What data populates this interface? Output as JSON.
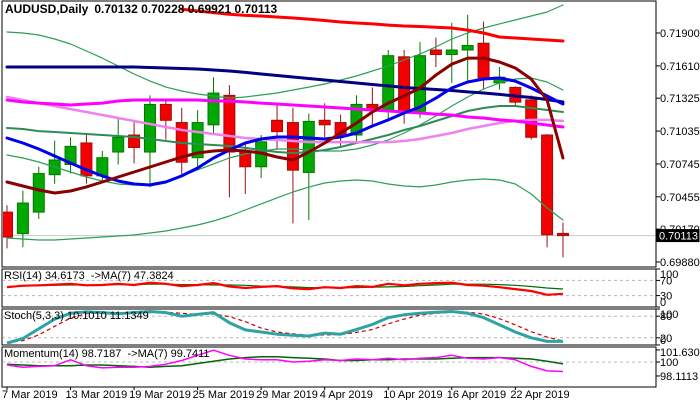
{
  "title": {
    "symbol_period": "AUDUSD,Daily",
    "ohlc": "0.70132 0.70228 0.69921 0.70113"
  },
  "colors": {
    "background": "#ffffff",
    "panel_border": "#000000",
    "bull_body": "#00a800",
    "bull_edge": "#007a00",
    "bear_body": "#f40000",
    "bear_edge": "#9b1010",
    "level_dash": "#b8b8b8",
    "current_price_line": "#c8c8c8",
    "price_tag_bg": "#000000",
    "price_tag_text": "#ffffff",
    "rsi_main": "#ff0000",
    "rsi_signal": "#007000",
    "stoch_k": "#2fa3a3",
    "stoch_d": "#cc0000",
    "mom_main": "#ff00ff",
    "mom_signal": "#006600"
  },
  "price_axis": {
    "ticks": [
      {
        "label": "0.71900",
        "value": 0.719
      },
      {
        "label": "0.71610",
        "value": 0.7161
      },
      {
        "label": "0.71325",
        "value": 0.71325
      },
      {
        "label": "0.71035",
        "value": 0.71035
      },
      {
        "label": "0.70745",
        "value": 0.70745
      },
      {
        "label": "0.70455",
        "value": 0.70455
      },
      {
        "label": "0.70170",
        "value": 0.7017
      },
      {
        "label": "0.69880",
        "value": 0.6988
      }
    ],
    "current": {
      "label": "0.70113",
      "value": 0.70113
    }
  },
  "time_axis": {
    "ticks": [
      {
        "label": "7 Mar 2019",
        "bar": 0
      },
      {
        "label": "13 Mar 2019",
        "bar": 4
      },
      {
        "label": "19 Mar 2019",
        "bar": 8
      },
      {
        "label": "25 Mar 2019",
        "bar": 12
      },
      {
        "label": "29 Mar 2019",
        "bar": 16
      },
      {
        "label": "4 Apr 2019",
        "bar": 20
      },
      {
        "label": "10 Apr 2019",
        "bar": 24
      },
      {
        "label": "16 Apr 2019",
        "bar": 28
      },
      {
        "label": "22 Apr 2019",
        "bar": 32
      }
    ]
  },
  "panels": {
    "rsi": {
      "label": "RSI(14) 34.6173  ->MA(7) 47.3824",
      "axis_ticks": [
        {
          "label": "100",
          "value": 100
        },
        {
          "label": "70",
          "value": 70
        },
        {
          "label": "30",
          "value": 30
        },
        {
          "label": "0",
          "value": 0
        }
      ],
      "levels": [
        70,
        30
      ],
      "range": [
        0,
        100
      ]
    },
    "stoch": {
      "label": "Stoch(5,3,3) 10.1010 11.1349",
      "axis_ticks": [
        {
          "label": "100",
          "value": 100
        },
        {
          "label": "80",
          "value": 80
        },
        {
          "label": "20",
          "value": 20
        },
        {
          "label": "0",
          "value": 0
        }
      ],
      "levels": [
        80,
        20
      ],
      "range": [
        0,
        100
      ]
    },
    "momentum": {
      "label": "Momentum(14) 98.7187  ->MA(7) 99.7411",
      "axis_ticks": [
        {
          "label": "101.6305",
          "value": 101.6305
        },
        {
          "label": "100",
          "value": 100
        },
        {
          "label": "98.1113",
          "value": 98.1113
        }
      ],
      "levels": [
        100
      ],
      "range": [
        98.1113,
        101.6305
      ]
    }
  },
  "chart_data": {
    "type": "candlestick",
    "title": "AUDUSD,Daily",
    "symbol": "AUDUSD",
    "timeframe": "Daily",
    "current_bar_ohlc": {
      "open": 0.70132,
      "high": 0.70228,
      "low": 0.69921,
      "close": 0.70113
    },
    "ylim": [
      0.6988,
      0.719
    ],
    "dates": [
      "7 Mar",
      "8 Mar",
      "11 Mar",
      "12 Mar",
      "13 Mar",
      "14 Mar",
      "15 Mar",
      "18 Mar",
      "19 Mar",
      "20 Mar",
      "21 Mar",
      "22 Mar",
      "25 Mar",
      "26 Mar",
      "27 Mar",
      "28 Mar",
      "29 Mar",
      "1 Apr",
      "2 Apr",
      "3 Apr",
      "4 Apr",
      "5 Apr",
      "8 Apr",
      "9 Apr",
      "10 Apr",
      "11 Apr",
      "12 Apr",
      "15 Apr",
      "16 Apr",
      "17 Apr",
      "18 Apr",
      "19 Apr",
      "22 Apr",
      "23 Apr",
      "24 Apr",
      "25 Apr"
    ],
    "open": [
      0.7032,
      0.7013,
      0.7032,
      0.7065,
      0.7074,
      0.7093,
      0.7064,
      0.7085,
      0.71,
      0.7085,
      0.7127,
      0.7111,
      0.708,
      0.7109,
      0.7135,
      0.7085,
      0.7072,
      0.7113,
      0.7111,
      0.7067,
      0.7113,
      0.7111,
      0.71,
      0.7127,
      0.7122,
      0.7169,
      0.7121,
      0.7175,
      0.7171,
      0.7175,
      0.7181,
      0.7146,
      0.7142,
      0.7131,
      0.71,
      0.70132
    ],
    "high": [
      0.7038,
      0.7051,
      0.7072,
      0.7095,
      0.7098,
      0.71,
      0.7086,
      0.7115,
      0.7113,
      0.7135,
      0.7131,
      0.7124,
      0.7122,
      0.7151,
      0.7144,
      0.7093,
      0.71,
      0.7127,
      0.7124,
      0.7119,
      0.7128,
      0.7118,
      0.7135,
      0.7142,
      0.7175,
      0.7175,
      0.7182,
      0.7186,
      0.7199,
      0.7206,
      0.72,
      0.716,
      0.7143,
      0.7135,
      0.7101,
      0.70228
    ],
    "low": [
      0.7,
      0.7001,
      0.7026,
      0.7057,
      0.7066,
      0.7057,
      0.7058,
      0.7074,
      0.7075,
      0.7054,
      0.7096,
      0.7065,
      0.7069,
      0.71,
      0.7045,
      0.7048,
      0.7062,
      0.7087,
      0.7022,
      0.7025,
      0.7098,
      0.7089,
      0.7094,
      0.7107,
      0.7112,
      0.711,
      0.7115,
      0.716,
      0.7146,
      0.7147,
      0.714,
      0.714,
      0.7126,
      0.7096,
      0.7001,
      0.69921
    ],
    "close": [
      0.701,
      0.704,
      0.7066,
      0.7078,
      0.709,
      0.7064,
      0.708,
      0.7098,
      0.7089,
      0.7127,
      0.7113,
      0.7076,
      0.7111,
      0.7137,
      0.7085,
      0.7072,
      0.7094,
      0.7103,
      0.7069,
      0.7112,
      0.7109,
      0.71,
      0.7127,
      0.7122,
      0.717,
      0.712,
      0.717,
      0.7171,
      0.7175,
      0.7179,
      0.7149,
      0.7151,
      0.7129,
      0.7098,
      0.7012,
      0.70113
    ],
    "overlays": [
      {
        "name": "bollinger-upper",
        "color": "#2e9e57",
        "width": 1.2,
        "values": [
          0.71909,
          0.719,
          0.71882,
          0.71847,
          0.71803,
          0.71741,
          0.71679,
          0.71609,
          0.71538,
          0.71476,
          0.71423,
          0.71388,
          0.71362,
          0.71344,
          0.71326,
          0.71335,
          0.71353,
          0.71371,
          0.71397,
          0.71423,
          0.7145,
          0.71485,
          0.71521,
          0.71565,
          0.71609,
          0.71662,
          0.71715,
          0.71777,
          0.71847,
          0.719,
          0.71944,
          0.7198,
          0.72015,
          0.7205,
          0.72085,
          0.72147
        ]
      },
      {
        "name": "bollinger-lower",
        "color": "#2e9e57",
        "width": 1.2,
        "values": [
          0.70092,
          0.70083,
          0.70074,
          0.70074,
          0.70083,
          0.70092,
          0.701,
          0.70109,
          0.70118,
          0.70136,
          0.70153,
          0.7018,
          0.70206,
          0.70242,
          0.70286,
          0.70339,
          0.70392,
          0.70445,
          0.70497,
          0.70541,
          0.70577,
          0.70594,
          0.70603,
          0.70594,
          0.70568,
          0.7055,
          0.70542,
          0.70559,
          0.70586,
          0.70603,
          0.70612,
          0.70603,
          0.70568,
          0.7048,
          0.70356,
          0.7025
        ]
      },
      {
        "name": "bollinger-middle",
        "color": "#2e9e57",
        "width": 1.2,
        "values": [
          0.70824,
          0.70797,
          0.70762,
          0.70718,
          0.70674,
          0.7063,
          0.70594,
          0.70568,
          0.70559,
          0.70568,
          0.70594,
          0.70639,
          0.70692,
          0.70745,
          0.70797,
          0.70833,
          0.70859,
          0.70877,
          0.70877,
          0.70868,
          0.70859,
          0.70859,
          0.70877,
          0.70912,
          0.70956,
          0.71018,
          0.71088,
          0.71168,
          0.71256,
          0.71335,
          0.71406,
          0.71459,
          0.71494,
          0.71503,
          0.71468,
          0.71397
        ]
      },
      {
        "name": "ma-green",
        "color": "#2e8b57",
        "width": 2,
        "values": [
          0.71062,
          0.71053,
          0.71035,
          0.71027,
          0.71018,
          0.71009,
          0.71,
          0.70991,
          0.70983,
          0.70965,
          0.70947,
          0.7093,
          0.70921,
          0.70912,
          0.70903,
          0.70886,
          0.70868,
          0.7085,
          0.70841,
          0.7085,
          0.70868,
          0.70894,
          0.7093,
          0.70965,
          0.71,
          0.71044,
          0.7108,
          0.71124,
          0.71168,
          0.71212,
          0.71238,
          0.71256,
          0.71256,
          0.71238,
          0.71221,
          0.71203
        ]
      },
      {
        "name": "ma-violet",
        "color": "#ee82ee",
        "width": 2.5,
        "values": [
          0.71335,
          0.71309,
          0.71282,
          0.71256,
          0.71229,
          0.71203,
          0.71177,
          0.7115,
          0.71124,
          0.71097,
          0.71071,
          0.71044,
          0.71027,
          0.71009,
          0.70991,
          0.70974,
          0.70965,
          0.70956,
          0.70947,
          0.70938,
          0.70938,
          0.70938,
          0.70938,
          0.70938,
          0.70938,
          0.70947,
          0.70965,
          0.70991,
          0.71018,
          0.71053,
          0.7108,
          0.71106,
          0.71124,
          0.71133,
          0.71133,
          0.71124
        ]
      },
      {
        "name": "ma-magenta",
        "color": "#ff00ff",
        "width": 3,
        "values": [
          0.71309,
          0.71291,
          0.71282,
          0.71274,
          0.71265,
          0.71274,
          0.71282,
          0.713,
          0.71309,
          0.71309,
          0.71309,
          0.71309,
          0.71309,
          0.713,
          0.713,
          0.71291,
          0.71282,
          0.71274,
          0.71265,
          0.71256,
          0.71247,
          0.71238,
          0.71229,
          0.71221,
          0.71212,
          0.71203,
          0.71194,
          0.71185,
          0.71177,
          0.71159,
          0.7115,
          0.71133,
          0.71124,
          0.71106,
          0.71088,
          0.71071
        ]
      },
      {
        "name": "ma-navy",
        "color": "#000080",
        "width": 3,
        "values": [
          0.716,
          0.716,
          0.716,
          0.716,
          0.716,
          0.716,
          0.716,
          0.716,
          0.716,
          0.71596,
          0.71591,
          0.71587,
          0.71582,
          0.71574,
          0.71565,
          0.71552,
          0.71538,
          0.71525,
          0.71512,
          0.71499,
          0.71485,
          0.71472,
          0.71459,
          0.71446,
          0.71433,
          0.71419,
          0.7141,
          0.71402,
          0.71393,
          0.7138,
          0.71371,
          0.71358,
          0.71344,
          0.71331,
          0.71313,
          0.71291
        ]
      },
      {
        "name": "ma-blue",
        "color": "#0000ee",
        "width": 3,
        "values": [
          0.70974,
          0.7093,
          0.70877,
          0.70815,
          0.70753,
          0.70692,
          0.70639,
          0.70594,
          0.70568,
          0.70559,
          0.70586,
          0.70639,
          0.70709,
          0.70797,
          0.70868,
          0.7093,
          0.70965,
          0.70983,
          0.70983,
          0.70974,
          0.70965,
          0.70983,
          0.71018,
          0.7108,
          0.71133,
          0.71194,
          0.71247,
          0.71326,
          0.71415,
          0.71468,
          0.71494,
          0.71503,
          0.71476,
          0.71415,
          0.71344,
          0.71274
        ]
      },
      {
        "name": "ma-maroon",
        "color": "#8b0000",
        "width": 3,
        "values": [
          0.70586,
          0.7055,
          0.70515,
          0.70489,
          0.70506,
          0.70542,
          0.70586,
          0.7063,
          0.70674,
          0.70718,
          0.70762,
          0.70806,
          0.70841,
          0.70859,
          0.70868,
          0.70859,
          0.70841,
          0.70806,
          0.7078,
          0.7085,
          0.7093,
          0.71018,
          0.71106,
          0.71203,
          0.71282,
          0.71344,
          0.71415,
          0.71529,
          0.71626,
          0.71679,
          0.71679,
          0.71644,
          0.71591,
          0.71494,
          0.71309,
          0.70797
        ]
      },
      {
        "name": "ma-red",
        "color": "#ff0000",
        "width": 3,
        "values": [
          null,
          null,
          null,
          null,
          null,
          null,
          null,
          null,
          null,
          null,
          null,
          0.7211,
          0.72094,
          0.7208,
          0.72066,
          0.72055,
          0.7205,
          0.72041,
          0.72032,
          0.72023,
          0.7201,
          0.71997,
          0.71988,
          0.7198,
          0.7197,
          0.71962,
          0.71957,
          0.7195,
          0.71944,
          0.71926,
          0.719,
          0.71865,
          0.71856,
          0.71847,
          0.71838,
          0.71829
        ]
      }
    ],
    "rsi": {
      "main": [
        52,
        56,
        57,
        59,
        61,
        57,
        58,
        61,
        58,
        64,
        61,
        55,
        58,
        63,
        54,
        50,
        53,
        55,
        49,
        47,
        52,
        50,
        55,
        53,
        61,
        57,
        61,
        63,
        64,
        58,
        56,
        52,
        47,
        42,
        32,
        34.62
      ],
      "signal": [
        54,
        55,
        56,
        57,
        58,
        58,
        58,
        59,
        59,
        60,
        60,
        59,
        59,
        58,
        58,
        57,
        55,
        54,
        53,
        51,
        51,
        51,
        51,
        52,
        53,
        54,
        56,
        58,
        60,
        60,
        60,
        59,
        57,
        54,
        50,
        47.38
      ]
    },
    "stoch": {
      "k": [
        5,
        18,
        45,
        72,
        88,
        92,
        90,
        87,
        90,
        93,
        90,
        80,
        85,
        90,
        62,
        42,
        36,
        30,
        27,
        25,
        33,
        30,
        43,
        57,
        76,
        84,
        88,
        91,
        93,
        88,
        76,
        56,
        36,
        20,
        10,
        10.1
      ],
      "d": [
        8,
        12,
        28,
        52,
        75,
        87,
        90,
        90,
        89,
        90,
        91,
        88,
        85,
        86,
        79,
        65,
        47,
        36,
        31,
        27,
        28,
        29,
        35,
        43,
        59,
        72,
        83,
        88,
        91,
        91,
        86,
        73,
        56,
        37,
        22,
        11.1
      ]
    },
    "momentum": {
      "main": [
        99.6,
        99.3,
        99.4,
        99.5,
        100.3,
        99.5,
        99.2,
        99.3,
        99.3,
        99.4,
        99.7,
        100.2,
        100.9,
        101.6,
        100.9,
        100.4,
        100.3,
        100.3,
        100.0,
        100.1,
        100.3,
        100.2,
        100.4,
        100.3,
        100.5,
        100.3,
        100.5,
        100.6,
        100.9,
        100.5,
        100.4,
        100.6,
        100.3,
        99.4,
        98.8,
        98.72
      ],
      "signal": [
        99.7,
        99.6,
        99.5,
        99.5,
        99.5,
        99.6,
        99.6,
        99.5,
        99.4,
        99.3,
        99.4,
        99.5,
        99.8,
        100.1,
        100.4,
        100.6,
        100.7,
        100.7,
        100.6,
        100.5,
        100.4,
        100.2,
        100.2,
        100.3,
        100.3,
        100.4,
        100.4,
        100.4,
        100.5,
        100.6,
        100.6,
        100.6,
        100.5,
        100.4,
        100.1,
        99.74
      ]
    }
  }
}
